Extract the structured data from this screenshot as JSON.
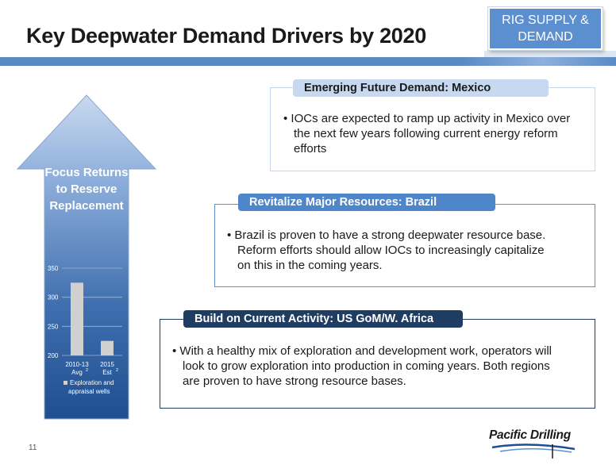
{
  "header": {
    "title": "Key Deepwater Demand Drivers by 2020",
    "tag": "RIG SUPPLY & DEMAND"
  },
  "arrow": {
    "label": "Focus Returns to Reserve Replacement"
  },
  "chart_data": {
    "type": "bar",
    "categories": [
      "2010-13 Avg",
      "2015 Est"
    ],
    "category_footnotes": [
      "2",
      "2"
    ],
    "series": [
      {
        "name": "Exploration and appraisal wells",
        "values": [
          325,
          225
        ]
      }
    ],
    "yticks": [
      200,
      250,
      300,
      350
    ],
    "ylim": [
      200,
      350
    ],
    "grid": true,
    "legend": "bottom",
    "bar_color": "#d0d0d0"
  },
  "callouts": [
    {
      "heading": "Emerging Future Demand: Mexico",
      "text": "• IOCs are expected to ramp up activity in Mexico over the next few years following current energy reform efforts"
    },
    {
      "heading": "Revitalize Major Resources: Brazil",
      "text": "• Brazil is proven to have a strong deepwater resource base. Reform efforts should allow IOCs to increasingly capitalize on this in the coming years."
    },
    {
      "heading": "Build on Current Activity: US GoM/W. Africa",
      "text": "• With a healthy mix of exploration and development work, operators will look to grow exploration into production in coming years. Both regions are proven to have strong resource bases."
    }
  ],
  "footer": {
    "page_number": "11",
    "logo": "Pacific Drilling"
  },
  "colors": {
    "accent": "#5b8fd0",
    "dark_navy": "#1f3d63",
    "light_blue": "#c6d9f0"
  }
}
